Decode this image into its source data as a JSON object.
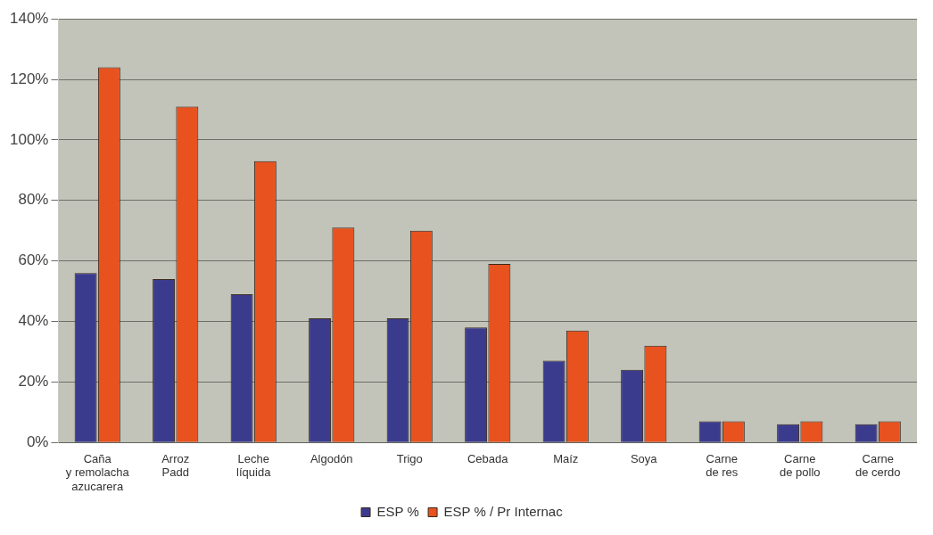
{
  "chart_data": {
    "type": "bar",
    "categories": [
      "Caña\ny remolacha\nazucarera",
      "Arroz\nPadd",
      "Leche\nlíquida",
      "Algodón",
      "Trigo",
      "Cebada",
      "Maíz",
      "Soya",
      "Carne\nde res",
      "Carne\nde pollo",
      "Carne\nde cerdo"
    ],
    "series": [
      {
        "name": "ESP %",
        "color": "#3b3b8e",
        "values": [
          56,
          54,
          49,
          41,
          41,
          38,
          27,
          24,
          7,
          6,
          6
        ]
      },
      {
        "name": "ESP % / Pr Internac",
        "color": "#e8521f",
        "values": [
          124,
          111,
          93,
          71,
          70,
          59,
          37,
          32,
          7,
          7,
          7
        ]
      }
    ],
    "ylim": [
      0,
      140
    ],
    "yticks": [
      {
        "value": 0,
        "label": "0%"
      },
      {
        "value": 20,
        "label": "20%"
      },
      {
        "value": 40,
        "label": "40%"
      },
      {
        "value": 60,
        "label": "60%"
      },
      {
        "value": 80,
        "label": "80%"
      },
      {
        "value": 100,
        "label": "100%"
      },
      {
        "value": 120,
        "label": "120%"
      },
      {
        "value": 140,
        "label": "140%"
      }
    ],
    "grid": "y",
    "legend": "bottom"
  }
}
